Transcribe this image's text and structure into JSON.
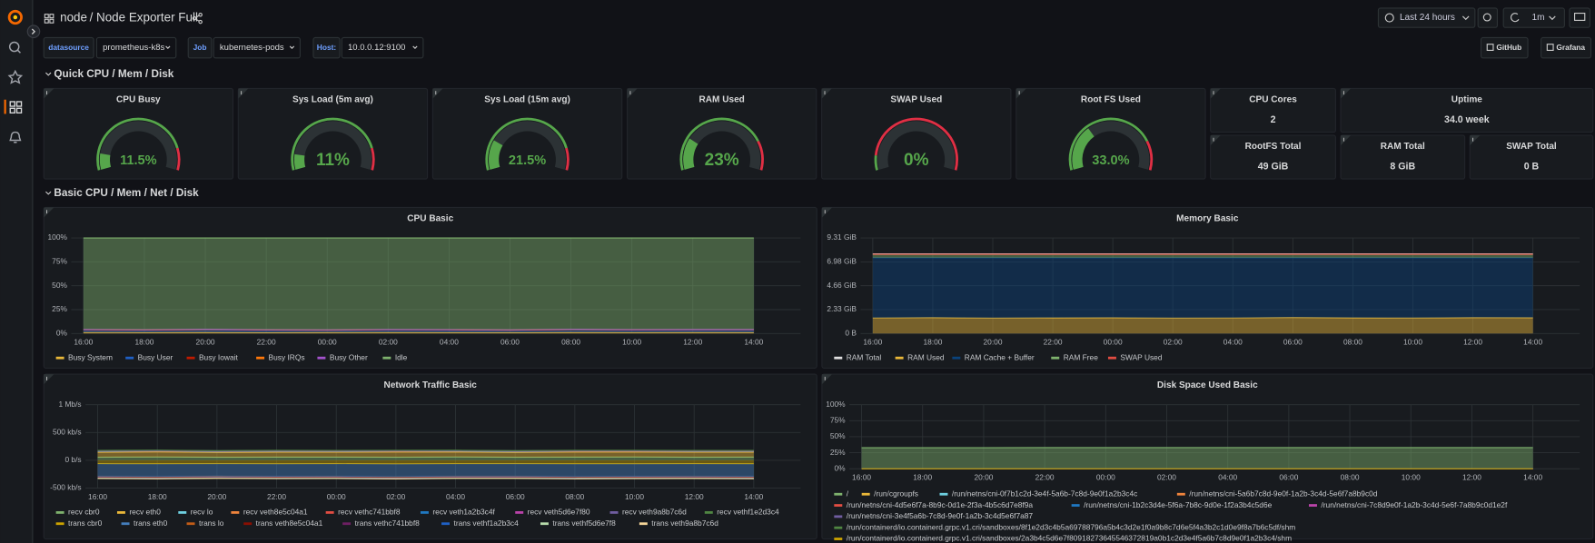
{
  "header": {
    "breadcrumb": "node",
    "title": "/ Node Exporter Full",
    "time_range": "Last 24 hours",
    "refresh_interval": "1m"
  },
  "variables": [
    {
      "label": "datasource",
      "value": "prometheus-k8s"
    },
    {
      "label": "Job",
      "value": "kubernetes-pods"
    },
    {
      "label": "Host:",
      "value": "10.0.0.12:9100"
    }
  ],
  "links": [
    "GitHub",
    "Grafana"
  ],
  "rows": [
    "Quick CPU / Mem / Disk",
    "Basic CPU / Mem / Net / Disk"
  ],
  "gauge_scale": [
    0,
    100
  ],
  "gauges": [
    {
      "title": "CPU Busy",
      "value": 11.5,
      "label": "11.5%",
      "threshold": 85
    },
    {
      "title": "Sys Load (5m avg)",
      "value": 11,
      "label": "11%",
      "threshold": 85
    },
    {
      "title": "Sys Load (15m avg)",
      "value": 21.5,
      "label": "21.5%",
      "threshold": 85
    },
    {
      "title": "RAM Used",
      "value": 23,
      "label": "23%",
      "threshold": 80
    },
    {
      "title": "SWAP Used",
      "value": 0,
      "label": "0%",
      "threshold": 10
    },
    {
      "title": "Root FS Used",
      "value": 33.0,
      "label": "33.0%",
      "threshold": 80
    }
  ],
  "stats": [
    {
      "title": "CPU Cores",
      "value": "2"
    },
    {
      "title": "Uptime",
      "value": "34.0 week"
    },
    {
      "title": "RootFS Total",
      "value": "49 GiB"
    },
    {
      "title": "RAM Total",
      "value": "8 GiB"
    },
    {
      "title": "SWAP Total",
      "value": "0 B"
    }
  ],
  "chart_data": [
    {
      "type": "area",
      "title": "CPU Basic",
      "grid": true,
      "categories": [
        "16:00",
        "18:00",
        "20:00",
        "22:00",
        "00:00",
        "02:00",
        "04:00",
        "06:00",
        "08:00",
        "10:00",
        "12:00",
        "14:00"
      ],
      "ylim": [
        0,
        100
      ],
      "yticks": [
        {
          "value": 0,
          "label": "0%"
        },
        {
          "value": 25,
          "label": "25%"
        },
        {
          "value": 50,
          "label": "50%"
        },
        {
          "value": 75,
          "label": "75%"
        },
        {
          "value": 100,
          "label": "100%"
        }
      ],
      "series": [
        {
          "name": "Busy System",
          "color": "#EAB839",
          "stack": true,
          "fill": true,
          "values": [
            1.2,
            1.1,
            1.2,
            1.0,
            1.1,
            1.2,
            1.1,
            1.0,
            1.2,
            1.1,
            1.2,
            1.1
          ]
        },
        {
          "name": "Busy User",
          "color": "#1F60C4",
          "stack": true,
          "fill": true,
          "values": [
            2.6,
            2.4,
            2.7,
            2.5,
            2.3,
            2.6,
            2.5,
            2.4,
            2.8,
            2.6,
            2.5,
            2.7
          ]
        },
        {
          "name": "Busy Iowait",
          "color": "#BF1B00",
          "stack": true,
          "fill": true,
          "values": [
            0.2,
            0.2,
            0.3,
            0.2,
            0.2,
            0.2,
            0.3,
            0.2,
            0.2,
            0.2,
            0.3,
            0.2
          ]
        },
        {
          "name": "Busy IRQs",
          "color": "#FF780A",
          "stack": true,
          "fill": true,
          "values": [
            0,
            0,
            0,
            0,
            0,
            0,
            0,
            0,
            0,
            0,
            0,
            0
          ]
        },
        {
          "name": "Busy Other",
          "color": "#A352CC",
          "stack": true,
          "fill": true,
          "values": [
            0.3,
            0.3,
            0.3,
            0.3,
            0.3,
            0.3,
            0.3,
            0.3,
            0.3,
            0.3,
            0.3,
            0.3
          ]
        },
        {
          "name": "Idle",
          "color": "#7EB26D",
          "stack": true,
          "fill": true,
          "values": [
            95.7,
            96.0,
            95.5,
            96.0,
            96.1,
            95.7,
            95.8,
            96.1,
            95.5,
            95.8,
            95.7,
            95.7
          ]
        }
      ]
    },
    {
      "type": "area",
      "title": "Memory Basic",
      "grid": true,
      "categories": [
        "16:00",
        "18:00",
        "20:00",
        "22:00",
        "00:00",
        "02:00",
        "04:00",
        "06:00",
        "08:00",
        "10:00",
        "12:00",
        "14:00"
      ],
      "ylim": [
        0,
        9.31
      ],
      "yticks": [
        {
          "value": 0,
          "label": "0 B"
        },
        {
          "value": 2.33,
          "label": "2.33 GiB"
        },
        {
          "value": 4.66,
          "label": "4.66 GiB"
        },
        {
          "value": 6.98,
          "label": "6.98 GiB"
        },
        {
          "value": 9.31,
          "label": "9.31 GiB"
        }
      ],
      "series": [
        {
          "name": "RAM Total",
          "color": "#E0E0E0",
          "stack": false,
          "fill": false,
          "values": [
            7.76,
            7.76,
            7.76,
            7.76,
            7.76,
            7.76,
            7.76,
            7.76,
            7.76,
            7.76,
            7.76,
            7.76
          ]
        },
        {
          "name": "RAM Used",
          "color": "#EAB839",
          "stack": true,
          "fill": true,
          "values": [
            1.52,
            1.55,
            1.5,
            1.53,
            1.54,
            1.5,
            1.52,
            1.56,
            1.53,
            1.51,
            1.55,
            1.54
          ]
        },
        {
          "name": "RAM Cache + Buffer",
          "color": "#0A437C",
          "stack": true,
          "fill": true,
          "values": [
            5.85,
            5.82,
            5.87,
            5.84,
            5.83,
            5.87,
            5.85,
            5.81,
            5.84,
            5.86,
            5.82,
            5.83
          ]
        },
        {
          "name": "RAM Free",
          "color": "#7EB26D",
          "stack": true,
          "fill": true,
          "values": [
            0.35,
            0.35,
            0.35,
            0.35,
            0.35,
            0.35,
            0.35,
            0.35,
            0.35,
            0.35,
            0.35,
            0.35
          ]
        },
        {
          "name": "SWAP Used",
          "color": "#E24D42",
          "stack": true,
          "fill": false,
          "values": [
            0,
            0,
            0,
            0,
            0,
            0,
            0,
            0,
            0,
            0,
            0,
            0
          ]
        }
      ]
    },
    {
      "type": "area",
      "title": "Network Traffic Basic",
      "grid": true,
      "categories": [
        "16:00",
        "18:00",
        "20:00",
        "22:00",
        "00:00",
        "02:00",
        "04:00",
        "06:00",
        "08:00",
        "10:00",
        "12:00",
        "14:00"
      ],
      "ylim": [
        -500,
        1000
      ],
      "yticks": [
        {
          "value": -500,
          "label": "-500 kb/s"
        },
        {
          "value": 0,
          "label": "0 b/s"
        },
        {
          "value": 500,
          "label": "500 kb/s"
        },
        {
          "value": 1000,
          "label": "1 Mb/s"
        }
      ],
      "series": [
        {
          "name": "recv cbr0",
          "color": "#7EB26D",
          "stack": true,
          "fill": true,
          "values": [
            55,
            58,
            54,
            56,
            57,
            55,
            59,
            54,
            56,
            58,
            55,
            57
          ]
        },
        {
          "name": "recv eth0",
          "color": "#EAB839",
          "stack": true,
          "fill": true,
          "values": [
            90,
            92,
            88,
            91,
            89,
            93,
            90,
            88,
            92,
            90,
            91,
            89
          ]
        },
        {
          "name": "recv lo",
          "color": "#6ED0E0",
          "stack": true,
          "fill": true,
          "values": [
            12,
            12,
            12,
            12,
            12,
            12,
            12,
            12,
            12,
            12,
            12,
            12
          ]
        },
        {
          "name": "recv veth8e5c04a1",
          "color": "#EF843C",
          "stack": true,
          "fill": true,
          "values": [
            4,
            4,
            4,
            4,
            4,
            4,
            4,
            4,
            4,
            4,
            4,
            4
          ]
        },
        {
          "name": "recv vethc741bbf8",
          "color": "#E24D42",
          "stack": true,
          "fill": true,
          "values": [
            4,
            4,
            4,
            4,
            4,
            4,
            4,
            4,
            4,
            4,
            4,
            4
          ]
        },
        {
          "name": "recv veth1a2b3c4f",
          "color": "#1F78C1",
          "stack": true,
          "fill": true,
          "values": [
            3,
            3,
            3,
            3,
            3,
            3,
            3,
            3,
            3,
            3,
            3,
            3
          ]
        },
        {
          "name": "recv veth5d6e7f80",
          "color": "#BA43A9",
          "stack": true,
          "fill": true,
          "values": [
            3,
            3,
            3,
            3,
            3,
            3,
            3,
            3,
            3,
            3,
            3,
            3
          ]
        },
        {
          "name": "recv veth9a8b7c6d",
          "color": "#705DA0",
          "stack": true,
          "fill": true,
          "values": [
            3,
            3,
            3,
            3,
            3,
            3,
            3,
            3,
            3,
            3,
            3,
            3
          ]
        },
        {
          "name": "recv vethf1e2d3c4",
          "color": "#508642",
          "stack": true,
          "fill": true,
          "values": [
            3,
            3,
            3,
            3,
            3,
            3,
            3,
            3,
            3,
            3,
            3,
            3
          ]
        },
        {
          "name": "trans cbr0",
          "color": "#CCA300",
          "stack": true,
          "fill": true,
          "values": [
            -60,
            -62,
            -59,
            -61,
            -60,
            -63,
            -60,
            -59,
            -62,
            -61,
            -60,
            -62
          ]
        },
        {
          "name": "trans eth0",
          "color": "#447EBC",
          "stack": true,
          "fill": true,
          "values": [
            -230,
            -235,
            -228,
            -232,
            -231,
            -236,
            -229,
            -230,
            -234,
            -232,
            -230,
            -233
          ]
        },
        {
          "name": "trans lo",
          "color": "#C15C17",
          "stack": true,
          "fill": true,
          "values": [
            -12,
            -12,
            -12,
            -12,
            -12,
            -12,
            -12,
            -12,
            -12,
            -12,
            -12,
            -12
          ]
        },
        {
          "name": "trans veth8e5c04a1",
          "color": "#890F02",
          "stack": true,
          "fill": true,
          "values": [
            -5,
            -5,
            -5,
            -5,
            -5,
            -5,
            -5,
            -5,
            -5,
            -5,
            -5,
            -5
          ]
        },
        {
          "name": "trans vethc741bbf8",
          "color": "#6D1F62",
          "stack": true,
          "fill": true,
          "values": [
            -5,
            -5,
            -5,
            -5,
            -5,
            -5,
            -5,
            -5,
            -5,
            -5,
            -5,
            -5
          ]
        },
        {
          "name": "trans vethf1a2b3c4",
          "color": "#1F60C4",
          "stack": true,
          "fill": true,
          "values": [
            -5,
            -5,
            -5,
            -5,
            -5,
            -5,
            -5,
            -5,
            -5,
            -5,
            -5,
            -5
          ]
        },
        {
          "name": "trans vethf5d6e7f8",
          "color": "#B7DBAB",
          "stack": true,
          "fill": true,
          "values": [
            -5,
            -5,
            -5,
            -5,
            -5,
            -5,
            -5,
            -5,
            -5,
            -5,
            -5,
            -5
          ]
        },
        {
          "name": "trans veth9a8b7c6d",
          "color": "#F4D598",
          "stack": true,
          "fill": true,
          "values": [
            -5,
            -5,
            -5,
            -5,
            -5,
            -5,
            -5,
            -5,
            -5,
            -5,
            -5,
            -5
          ]
        }
      ]
    },
    {
      "type": "area",
      "title": "Disk Space Used Basic",
      "grid": true,
      "categories": [
        "16:00",
        "18:00",
        "20:00",
        "22:00",
        "00:00",
        "02:00",
        "04:00",
        "06:00",
        "08:00",
        "10:00",
        "12:00",
        "14:00"
      ],
      "ylim": [
        0,
        100
      ],
      "yticks": [
        {
          "value": 0,
          "label": "0%"
        },
        {
          "value": 25,
          "label": "25%"
        },
        {
          "value": 50,
          "label": "50%"
        },
        {
          "value": 75,
          "label": "75%"
        },
        {
          "value": 100,
          "label": "100%"
        }
      ],
      "series": [
        {
          "name": "/",
          "color": "#7EB26D",
          "stack": false,
          "fill": true,
          "values": [
            32.8,
            32.9,
            32.9,
            33.0,
            33.0,
            33.0,
            33.0,
            33.0,
            33.0,
            33.0,
            33.0,
            33.0
          ]
        },
        {
          "name": "/run/cgroupfs",
          "color": "#EAB839",
          "stack": false,
          "fill": false,
          "values": [
            0,
            0,
            0,
            0,
            0,
            0,
            0,
            0,
            0,
            0,
            0,
            0
          ]
        },
        {
          "name": "/run/netns/cni-0f7b1c2d-3e4f-5a6b-7c8d-9e0f1a2b3c4c",
          "color": "#6ED0E0",
          "stack": false,
          "fill": false,
          "values": [
            0,
            0,
            0,
            0,
            0,
            0,
            0,
            0,
            0,
            0,
            0,
            0
          ]
        },
        {
          "name": "/run/netns/cni-5a6b7c8d-9e0f-1a2b-3c4d-5e6f7a8b9c0d",
          "color": "#EF843C",
          "stack": false,
          "fill": false,
          "values": [
            0,
            0,
            0,
            0,
            0,
            0,
            0,
            0,
            0,
            0,
            0,
            0
          ]
        },
        {
          "name": "/run/netns/cni-4d5e6f7a-8b9c-0d1e-2f3a-4b5c6d7e8f9a",
          "color": "#E24D42",
          "stack": false,
          "fill": false,
          "values": [
            0,
            0,
            0,
            0,
            0,
            0,
            0,
            0,
            0,
            0,
            0,
            0
          ]
        },
        {
          "name": "/run/netns/cni-1b2c3d4e-5f6a-7b8c-9d0e-1f2a3b4c5d6e",
          "color": "#1F78C1",
          "stack": false,
          "fill": false,
          "values": [
            0,
            0,
            0,
            0,
            0,
            0,
            0,
            0,
            0,
            0,
            0,
            0
          ]
        },
        {
          "name": "/run/netns/cni-7c8d9e0f-1a2b-3c4d-5e6f-7a8b9c0d1e2f",
          "color": "#BA43A9",
          "stack": false,
          "fill": false,
          "values": [
            0,
            0,
            0,
            0,
            0,
            0,
            0,
            0,
            0,
            0,
            0,
            0
          ]
        },
        {
          "name": "/run/netns/cni-3e4f5a6b-7c8d-9e0f-1a2b-3c4d5e6f7a87",
          "color": "#705DA0",
          "stack": false,
          "fill": false,
          "values": [
            0,
            0,
            0,
            0,
            0,
            0,
            0,
            0,
            0,
            0,
            0,
            0
          ]
        },
        {
          "name": "/run/containerd/io.containerd.grpc.v1.cri/sandboxes/8f1e2d3c4b5a69788796a5b4c3d2e1f0a9b8c7d6e5f4a3b2c1d0e9f8a7b6c5df/shm",
          "color": "#508642",
          "stack": false,
          "fill": false,
          "values": [
            0,
            0,
            0,
            0,
            0,
            0,
            0,
            0,
            0,
            0,
            0,
            0
          ]
        },
        {
          "name": "/run/containerd/io.containerd.grpc.v1.cri/sandboxes/2a3b4c5d6e7f80918273645546372819a0b1c2d3e4f5a6b7c8d9e0f1a2b3c4/shm",
          "color": "#CCA300",
          "stack": false,
          "fill": false,
          "values": [
            0,
            0,
            0,
            0,
            0,
            0,
            0,
            0,
            0,
            0,
            0,
            0
          ]
        }
      ]
    }
  ]
}
